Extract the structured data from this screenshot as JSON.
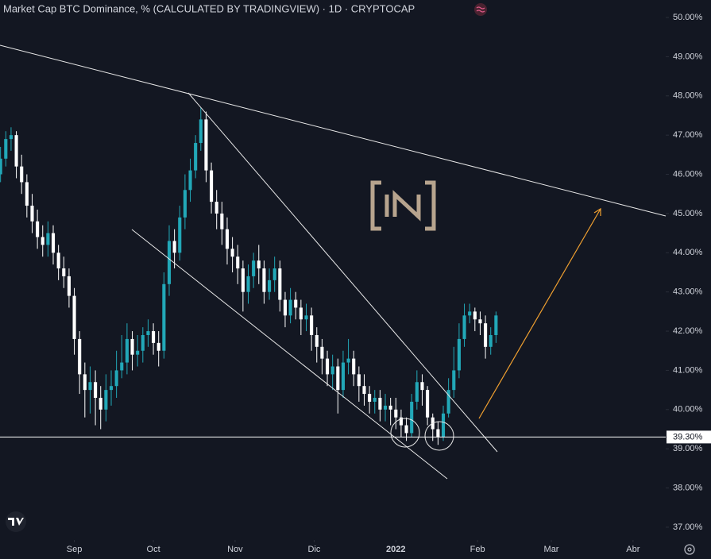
{
  "chart_data": {
    "type": "candlestick",
    "title": "Market Cap BTC Dominance, % (CALCULATED BY TRADINGVIEW) · 1D · CRYPTOCAP",
    "x": [
      -28,
      -26,
      -24,
      -22,
      -20,
      -18,
      -16,
      -14,
      -12,
      -10,
      -8,
      -6,
      -4,
      -2,
      0,
      2,
      4,
      6,
      8,
      10,
      12,
      14,
      16,
      18,
      20,
      22,
      24,
      26,
      28,
      30,
      32,
      34,
      36,
      38,
      40,
      42,
      44,
      46,
      48,
      50,
      52,
      54,
      56,
      58,
      60,
      62,
      64,
      66,
      68,
      70,
      72,
      74,
      76,
      78,
      80,
      82,
      84,
      86,
      88,
      90,
      92,
      94,
      96,
      98,
      100,
      102,
      104,
      106,
      108,
      110,
      112,
      114,
      116,
      118,
      120,
      122,
      124,
      126,
      128,
      130,
      132,
      134,
      136,
      138,
      140,
      142,
      144,
      146,
      148,
      150,
      152,
      154,
      156,
      158,
      160
    ],
    "open": [
      46.0,
      46.4,
      46.9,
      47.0,
      46.2,
      45.8,
      45.2,
      44.8,
      44.4,
      44.2,
      44.5,
      44.0,
      43.6,
      43.4,
      42.9,
      41.8,
      40.9,
      40.5,
      40.7,
      40.3,
      40.0,
      40.5,
      40.6,
      41.0,
      41.2,
      41.8,
      41.4,
      41.5,
      41.9,
      42.0,
      41.7,
      41.5,
      43.2,
      44.3,
      44.0,
      44.9,
      45.6,
      46.1,
      46.8,
      47.4,
      46.1,
      45.3,
      45.0,
      44.6,
      44.1,
      43.9,
      43.6,
      43.0,
      43.4,
      43.8,
      43.6,
      43.0,
      43.3,
      43.6,
      42.8,
      42.4,
      42.8,
      42.6,
      42.3,
      42.4,
      41.9,
      41.6,
      41.3,
      40.9,
      41.1,
      40.5,
      41.2,
      41.3,
      40.9,
      40.6,
      40.4,
      40.2,
      40.3,
      40.0,
      40.1,
      40.0,
      39.8,
      39.6,
      39.4,
      40.2,
      40.7,
      40.5,
      39.8,
      39.5,
      39.3,
      39.9,
      40.5,
      41.0,
      41.8,
      42.4,
      42.5,
      42.3,
      42.2,
      41.6,
      41.9
    ],
    "high": [
      46.7,
      47.1,
      47.2,
      47.1,
      46.5,
      46.0,
      45.5,
      45.1,
      44.7,
      44.8,
      44.7,
      44.2,
      43.9,
      43.6,
      43.1,
      42.0,
      41.2,
      41.1,
      41.0,
      40.6,
      40.9,
      41.0,
      41.5,
      41.9,
      42.2,
      42.0,
      41.9,
      42.1,
      42.3,
      42.2,
      42.0,
      43.5,
      44.7,
      44.6,
      45.2,
      46.0,
      46.4,
      47.0,
      47.7,
      47.6,
      46.3,
      45.6,
      45.3,
      44.9,
      44.4,
      44.2,
      43.8,
      43.7,
      44.0,
      44.2,
      43.8,
      43.6,
      43.9,
      43.8,
      43.0,
      43.1,
      43.0,
      42.8,
      42.7,
      42.6,
      42.1,
      41.8,
      41.5,
      41.4,
      41.3,
      41.5,
      41.8,
      41.5,
      41.1,
      40.9,
      40.6,
      40.5,
      40.5,
      40.4,
      40.3,
      40.3,
      40.0,
      39.8,
      40.4,
      41.0,
      40.9,
      40.6,
      39.9,
      39.7,
      40.1,
      40.8,
      41.6,
      42.2,
      42.7,
      42.7,
      42.6,
      42.5,
      42.4,
      42.1,
      42.5
    ],
    "low": [
      45.8,
      46.2,
      46.6,
      45.9,
      45.5,
      44.9,
      44.5,
      44.1,
      43.9,
      43.9,
      43.7,
      43.3,
      43.1,
      42.6,
      41.4,
      40.4,
      39.8,
      39.9,
      39.6,
      39.5,
      39.7,
      40.1,
      40.3,
      40.8,
      40.9,
      41.0,
      41.1,
      41.2,
      41.6,
      41.4,
      41.1,
      41.3,
      42.9,
      43.6,
      43.8,
      44.6,
      45.3,
      45.9,
      46.6,
      45.8,
      45.0,
      44.6,
      44.2,
      43.7,
      43.5,
      43.2,
      42.5,
      42.7,
      43.1,
      43.2,
      42.7,
      42.8,
      43.0,
      42.5,
      42.1,
      42.2,
      42.3,
      41.9,
      42.0,
      41.5,
      41.2,
      40.9,
      40.6,
      40.5,
      39.9,
      40.3,
      40.9,
      40.6,
      40.2,
      40.1,
      39.9,
      39.9,
      39.7,
      39.7,
      39.6,
      39.5,
      39.3,
      39.2,
      39.3,
      40.0,
      40.1,
      39.6,
      39.2,
      39.1,
      39.2,
      39.8,
      40.3,
      40.8,
      41.6,
      42.2,
      42.0,
      41.9,
      41.3,
      41.4,
      41.7
    ],
    "close": [
      46.4,
      46.9,
      47.0,
      46.2,
      45.8,
      45.2,
      44.8,
      44.4,
      44.2,
      44.5,
      44.0,
      43.6,
      43.4,
      42.9,
      41.8,
      40.9,
      40.5,
      40.7,
      40.3,
      40.0,
      40.5,
      40.6,
      41.0,
      41.2,
      41.8,
      41.4,
      41.5,
      41.9,
      42.0,
      41.7,
      41.5,
      43.2,
      44.3,
      44.0,
      44.9,
      45.6,
      46.1,
      46.8,
      47.4,
      46.1,
      45.3,
      45.0,
      44.6,
      44.1,
      43.9,
      43.6,
      43.0,
      43.4,
      43.8,
      43.6,
      43.0,
      43.3,
      43.6,
      42.8,
      42.4,
      42.8,
      42.6,
      42.3,
      42.4,
      41.9,
      41.6,
      41.3,
      40.9,
      41.1,
      40.5,
      41.2,
      41.3,
      40.9,
      40.6,
      40.4,
      40.2,
      40.3,
      40.0,
      40.1,
      40.0,
      39.8,
      39.6,
      39.4,
      40.2,
      40.7,
      40.5,
      39.8,
      39.5,
      39.3,
      39.9,
      40.5,
      41.0,
      41.8,
      42.4,
      42.5,
      42.3,
      42.2,
      41.6,
      41.9,
      42.4
    ],
    "up_color": "#22a8b8",
    "down_color": "#ffffff",
    "xlim": [
      -28.2,
      224.4
    ],
    "xticks": [
      {
        "value": 0,
        "label": "Sep"
      },
      {
        "value": 30,
        "label": "Oct"
      },
      {
        "value": 61,
        "label": "Nov"
      },
      {
        "value": 91,
        "label": "Dic"
      },
      {
        "value": 122,
        "label": "2022"
      },
      {
        "value": 153,
        "label": "Feb"
      },
      {
        "value": 181,
        "label": "Mar"
      },
      {
        "value": 212,
        "label": "Abr"
      }
    ],
    "ylim": [
      36.675,
      50.446
    ],
    "yticks": [
      {
        "value": 37,
        "label": "37.00%"
      },
      {
        "value": 38,
        "label": "38.00%"
      },
      {
        "value": 39,
        "label": "39.00%"
      },
      {
        "value": 40,
        "label": "40.00%"
      },
      {
        "value": 41,
        "label": "41.00%"
      },
      {
        "value": 42,
        "label": "42.00%"
      },
      {
        "value": 43,
        "label": "43.00%"
      },
      {
        "value": 44,
        "label": "44.00%"
      },
      {
        "value": 45,
        "label": "45.00%"
      },
      {
        "value": 46,
        "label": "46.00%"
      },
      {
        "value": 47,
        "label": "47.00%"
      },
      {
        "value": 48,
        "label": "48.00%"
      },
      {
        "value": 49,
        "label": "49.00%"
      },
      {
        "value": 50,
        "label": "50.00%"
      }
    ],
    "hline": {
      "value": 39.3,
      "label": "39.30%"
    },
    "grid": false
  }
}
